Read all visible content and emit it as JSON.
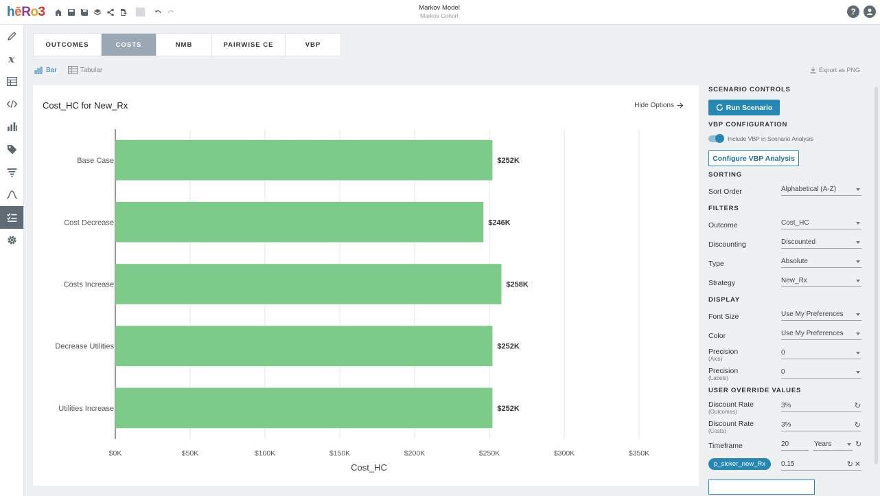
{
  "app": {
    "logo": "hēRo3",
    "title": "Markov Model",
    "subtitle": "Markov Cohort"
  },
  "toolbar_icons": [
    "home-icon",
    "save-icon",
    "save-as-icon",
    "layers-icon",
    "share-icon",
    "export-icon",
    "undo-icon",
    "redo-icon"
  ],
  "sidenav": [
    "pencil-icon",
    "variable-icon",
    "table-icon",
    "code-icon",
    "bar-chart-icon",
    "tag-icon",
    "filter-icon",
    "curve-icon",
    "checklist-icon",
    "gear-icon"
  ],
  "tabs": [
    {
      "label": "OUTCOMES",
      "active": false
    },
    {
      "label": "COSTS",
      "active": true
    },
    {
      "label": "NMB",
      "active": false
    },
    {
      "label": "PAIRWISE CE",
      "active": false
    },
    {
      "label": "VBP",
      "active": false
    }
  ],
  "view": {
    "bar_label": "Bar",
    "tabular_label": "Tabular",
    "export_label": "Export as PNG"
  },
  "chart": {
    "hide_options_label": "Hide Options"
  },
  "chart_data": {
    "type": "bar",
    "orientation": "horizontal",
    "title": "Cost_HC for New_Rx",
    "xlabel": "Cost_HC",
    "ylabel": "",
    "categories": [
      "Base Case",
      "Cost Decrease",
      "Costs Increase",
      "Decrease Utilities",
      "Utilities Increase"
    ],
    "values": [
      252000,
      246000,
      258000,
      252000,
      252000
    ],
    "data_labels": [
      "$252K",
      "$246K",
      "$258K",
      "$252K",
      "$252K"
    ],
    "xlim": [
      0,
      350000
    ],
    "xticks": [
      0,
      50000,
      100000,
      150000,
      200000,
      250000,
      300000,
      350000
    ],
    "xtick_labels": [
      "$0K",
      "$50K",
      "$100K",
      "$150K",
      "$200K",
      "$250K",
      "$300K",
      "$350K"
    ],
    "bar_color": "#7ccb88",
    "grid": true
  },
  "panel": {
    "scenario_controls": "SCENARIO CONTROLS",
    "run_scenario": "Run Scenario",
    "vbp_configuration": "VBP CONFIGURATION",
    "include_vbp": "Include VBP in Scenario Analysis",
    "configure_vbp": "Configure VBP Analysis",
    "sorting": "SORTING",
    "sort_order_label": "Sort Order",
    "sort_order_value": "Alphabetical (A-Z)",
    "filters": "FILTERS",
    "outcome_label": "Outcome",
    "outcome_value": "Cost_HC",
    "discounting_label": "Discounting",
    "discounting_value": "Discounted",
    "type_label": "Type",
    "type_value": "Absolute",
    "strategy_label": "Strategy",
    "strategy_value": "New_Rx",
    "display": "DISPLAY",
    "font_size_label": "Font Size",
    "font_size_value": "Use My Preferences",
    "color_label": "Color",
    "color_value": "Use My Preferences",
    "precision_label": "Precision",
    "precision_axis_sub": "(Axis)",
    "precision_axis_value": "0",
    "precision_labels_sub": "(Labels)",
    "precision_labels_value": "0",
    "user_override": "USER OVERRIDE VALUES",
    "discount_rate_label": "Discount Rate",
    "discount_outcomes_sub": "(Outcomes)",
    "discount_outcomes_value": "3%",
    "discount_costs_sub": "(Costs)",
    "discount_costs_value": "3%",
    "timeframe_label": "Timeframe",
    "timeframe_value": "20",
    "timeframe_unit": "Years",
    "param_chip": "p_sicker_new_Rx",
    "param_value": "0.15"
  }
}
